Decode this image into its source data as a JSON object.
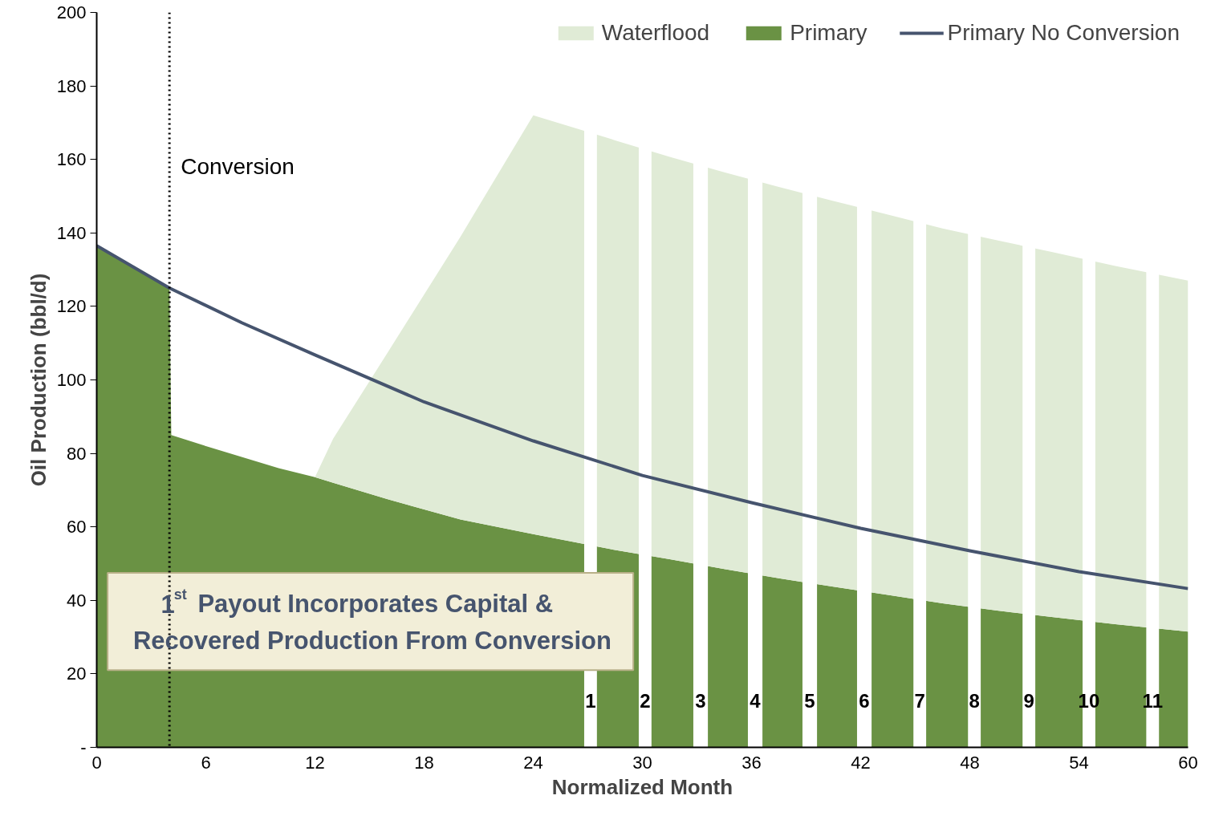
{
  "chart_data": {
    "type": "area",
    "stacked": true,
    "xlabel": "Normalized Month",
    "ylabel": "Oil Production (bbl/d)",
    "x": [
      0,
      2,
      4,
      4.1,
      6,
      8,
      10,
      12,
      13,
      16,
      20,
      24,
      28.5,
      31.5,
      34.5,
      37.5,
      40.5,
      43.5,
      46.5,
      49.5,
      52.5,
      56,
      60
    ],
    "series": [
      {
        "name": "Primary",
        "color": "#6a9244",
        "values": [
          136.5,
          130.5,
          125,
          85,
          82,
          79,
          76,
          73.5,
          72,
          67.5,
          62,
          58,
          53.7,
          51.2,
          48.5,
          46,
          43.7,
          41.5,
          39.2,
          37.2,
          35.5,
          33.5,
          31.5
        ]
      },
      {
        "name": "Waterflood",
        "color": "#e0ebd6",
        "values": [
          0,
          0,
          0,
          0,
          0,
          0,
          0,
          0,
          12,
          40,
          77,
          114,
          111.5,
          109.5,
          108,
          106.5,
          105,
          103.5,
          102,
          100.8,
          99.3,
          97.5,
          95.5
        ]
      },
      {
        "name": "Primary No Conversion",
        "type": "line",
        "color": "#46546e",
        "x": [
          0,
          4,
          8,
          12,
          18,
          24,
          30,
          36,
          42,
          48,
          54,
          60
        ],
        "values": [
          136.5,
          125,
          115.5,
          106.8,
          94,
          83.4,
          74,
          66.6,
          59.6,
          53.5,
          47.8,
          43.2
        ]
      }
    ],
    "xlim": [
      0,
      60
    ],
    "xticks": [
      0,
      6,
      12,
      18,
      24,
      30,
      36,
      42,
      48,
      54,
      60
    ],
    "ylim": [
      0,
      200
    ],
    "yticks": [
      {
        "value": 0,
        "label": "-"
      },
      20,
      40,
      60,
      80,
      100,
      120,
      140,
      160,
      180,
      200
    ],
    "ref_lines": [
      {
        "axis": "x",
        "value": 4,
        "label": "Conversion",
        "color": "#000000",
        "line_style": "dotted"
      }
    ],
    "bands": [
      {
        "axis": "x",
        "from": 26.8,
        "to": 27.5,
        "label": "1",
        "color": "#ffffff"
      },
      {
        "axis": "x",
        "from": 29.8,
        "to": 30.5,
        "label": "2",
        "color": "#ffffff"
      },
      {
        "axis": "x",
        "from": 32.8,
        "to": 33.6,
        "label": "3",
        "color": "#ffffff"
      },
      {
        "axis": "x",
        "from": 35.8,
        "to": 36.6,
        "label": "4",
        "color": "#ffffff"
      },
      {
        "axis": "x",
        "from": 38.8,
        "to": 39.6,
        "label": "5",
        "color": "#ffffff"
      },
      {
        "axis": "x",
        "from": 41.8,
        "to": 42.6,
        "label": "6",
        "color": "#ffffff"
      },
      {
        "axis": "x",
        "from": 44.9,
        "to": 45.6,
        "label": "7",
        "color": "#ffffff"
      },
      {
        "axis": "x",
        "from": 47.9,
        "to": 48.6,
        "label": "8",
        "color": "#ffffff"
      },
      {
        "axis": "x",
        "from": 50.9,
        "to": 51.6,
        "label": "9",
        "color": "#ffffff"
      },
      {
        "axis": "x",
        "from": 54.2,
        "to": 54.9,
        "label": "10",
        "color": "#ffffff"
      },
      {
        "axis": "x",
        "from": 57.7,
        "to": 58.4,
        "label": "11",
        "color": "#ffffff"
      }
    ],
    "annotations": [
      "1$^{st}$ Payout Incorporates Capital & Recovered Production From Conversion"
    ],
    "legend": "top right",
    "grid": false
  }
}
